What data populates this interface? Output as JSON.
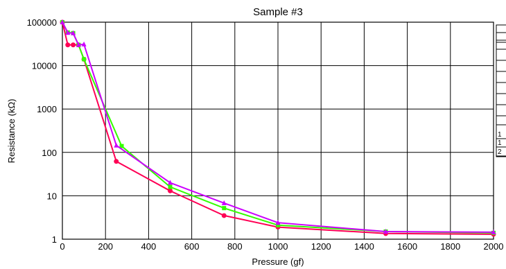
{
  "chart_data": {
    "type": "line",
    "title": "Sample #3",
    "xlabel": "Pressure (gf)",
    "ylabel": "Resistance (kΩ)",
    "xlim": [
      0,
      2000
    ],
    "ylim": [
      1,
      100000
    ],
    "y_scale": "log",
    "grid": true,
    "x_ticks": [
      0,
      200,
      400,
      600,
      800,
      1000,
      1200,
      1400,
      1600,
      1800,
      2000
    ],
    "x_tick_labels": [
      "0",
      "200",
      "400",
      "600",
      "800",
      "1000",
      "1200",
      "1400",
      "1600",
      "1800",
      "2000"
    ],
    "y_ticks": [
      1,
      10,
      100,
      1000,
      10000,
      100000
    ],
    "y_tick_labels": [
      "1",
      "10",
      "100",
      "1000",
      "10000",
      "100000"
    ],
    "series": [
      {
        "color": "#ff0055",
        "marker": "circle",
        "points": [
          [
            0,
            100000
          ],
          [
            25,
            30000
          ],
          [
            50,
            30000
          ],
          [
            75,
            30000
          ],
          [
            100,
            14000
          ],
          [
            250,
            62
          ],
          [
            500,
            13
          ],
          [
            750,
            3.5
          ],
          [
            1000,
            1.9
          ],
          [
            1500,
            1.35
          ],
          [
            2000,
            1.3
          ]
        ]
      },
      {
        "color": "#33ff00",
        "marker": "square",
        "points": [
          [
            0,
            100000
          ],
          [
            25,
            58000
          ],
          [
            50,
            56000
          ],
          [
            75,
            30000
          ],
          [
            100,
            14000
          ],
          [
            275,
            140
          ],
          [
            500,
            16
          ],
          [
            750,
            5.2
          ],
          [
            1000,
            2.1
          ],
          [
            1500,
            1.5
          ],
          [
            2000,
            1.4
          ]
        ]
      },
      {
        "color": "#cc00ff",
        "marker": "triangle",
        "points": [
          [
            0,
            100000
          ],
          [
            25,
            57000
          ],
          [
            50,
            56000
          ],
          [
            75,
            30000
          ],
          [
            100,
            31000
          ],
          [
            250,
            145
          ],
          [
            500,
            20
          ],
          [
            750,
            6.8
          ],
          [
            1000,
            2.4
          ],
          [
            1500,
            1.5
          ],
          [
            2000,
            1.45
          ]
        ]
      }
    ],
    "side_table_labels": [
      "1",
      "1",
      "2"
    ]
  }
}
